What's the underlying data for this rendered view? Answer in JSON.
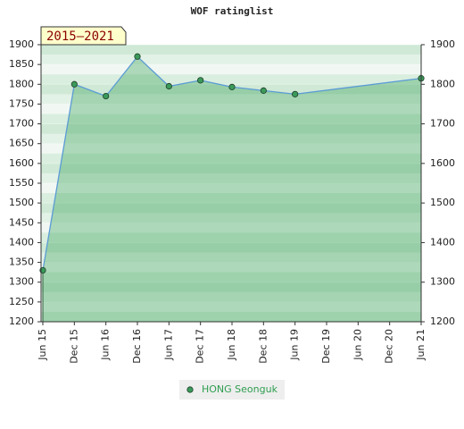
{
  "chart_data": {
    "type": "area",
    "title": "WOF ratinglist",
    "annotation": "2015–2021",
    "categories": [
      "Jun 15",
      "Dec 15",
      "Jun 16",
      "Dec 16",
      "Jun 17",
      "Dec 17",
      "Jun 18",
      "Dec 18",
      "Jun 19",
      "Dec 19",
      "Jun 20",
      "Dec 20",
      "Jun 21"
    ],
    "series": [
      {
        "name": "HONG Seonguk",
        "color": "#5b9bd5",
        "marker_color": "#3a9a5a",
        "x": [
          "Jun 15",
          "Dec 15",
          "Jun 16",
          "Dec 16",
          "Jun 17",
          "Dec 17",
          "Jun 18",
          "Dec 18",
          "Jun 19",
          "Jun 21"
        ],
        "values": [
          1330,
          1800,
          1770,
          1870,
          1795,
          1810,
          1793,
          1784,
          1775,
          1815
        ]
      }
    ],
    "ylim": [
      1200,
      1900
    ],
    "yticks": [
      1200,
      1250,
      1300,
      1350,
      1400,
      1450,
      1500,
      1550,
      1600,
      1650,
      1700,
      1750,
      1800,
      1850,
      1900
    ],
    "y2lim": [
      1200,
      1900
    ],
    "y2ticks": [
      1200,
      1300,
      1400,
      1500,
      1600,
      1700,
      1800,
      1900
    ],
    "grid": true,
    "legend": "bottom"
  }
}
